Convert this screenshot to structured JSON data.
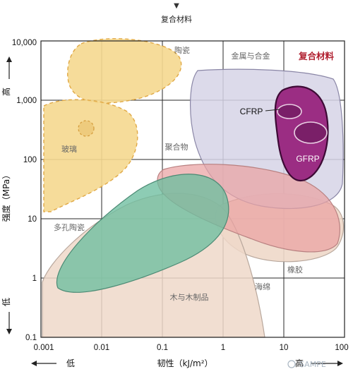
{
  "header": {
    "arrow": "▼",
    "title": "复合材料"
  },
  "chart_data": {
    "type": "area",
    "title": "",
    "xlabel": "韧性（kJ/m²）",
    "ylabel": "强度（MPa）",
    "x_scale": "log",
    "y_scale": "log",
    "xlim": [
      0.001,
      100
    ],
    "ylim": [
      0.1,
      10000
    ],
    "grid": true,
    "x_ticks": [
      "0.001",
      "0.01",
      "0.1",
      "1",
      "10",
      "100"
    ],
    "y_ticks": [
      "10,000",
      "1,000",
      "100",
      "10",
      "1",
      "0.1"
    ],
    "y_high": "高",
    "y_low": "低",
    "x_low": "低",
    "x_high": "高",
    "regions": [
      {
        "name": "陶瓷",
        "color": "#f5d88f",
        "outline": "dashed",
        "outline_color": "#e0a845",
        "label_at": [
          0.22,
          5200
        ]
      },
      {
        "name": "玻璃",
        "color": "#f5d88f",
        "outline": "dashed",
        "outline_color": "#e0a845",
        "label_at": [
          0.0035,
          150
        ]
      },
      {
        "name": "多孔陶瓷",
        "color": "#f5d88f",
        "outline": "dashed",
        "outline_color": "#e0a845",
        "label_at": [
          0.0045,
          4.5
        ]
      },
      {
        "name": "金属与合金",
        "color": "#d6d3e6",
        "outline": "solid",
        "outline_color": "#8a86a6",
        "label_at": [
          1.6,
          5000
        ]
      },
      {
        "name": "复合材料",
        "color": "#9b2d83",
        "outline": "solid",
        "outline_color": "#3d0a35",
        "label_at": [
          32,
          5000
        ],
        "label_color": "#b01e2e"
      },
      {
        "name": "CFRP",
        "color": "#7a1f68",
        "label_at": [
          4.2,
          620
        ]
      },
      {
        "name": "GFRP",
        "color": "#7a1f68",
        "label_at": [
          27,
          100
        ]
      },
      {
        "name": "聚合物",
        "color": "#eaa2a2",
        "outline": "solid",
        "outline_color": "#b88080",
        "label_at": [
          0.17,
          180
        ]
      },
      {
        "name": "橡胶",
        "color": "#eed8c9",
        "outline": "solid",
        "outline_color": "#b8a79c",
        "label_at": [
          20,
          1.5
        ]
      },
      {
        "name": "木与木制品",
        "color": "#6dbe9f",
        "outline": "solid",
        "outline_color": "#4b8a74",
        "label_at": [
          0.22,
          0.5
        ]
      },
      {
        "name": "海绵",
        "color": "#eed8c9",
        "outline": "solid",
        "outline_color": "#b8a79c",
        "label_at": [
          2.2,
          0.85
        ]
      }
    ]
  },
  "watermark": "SAMPE"
}
